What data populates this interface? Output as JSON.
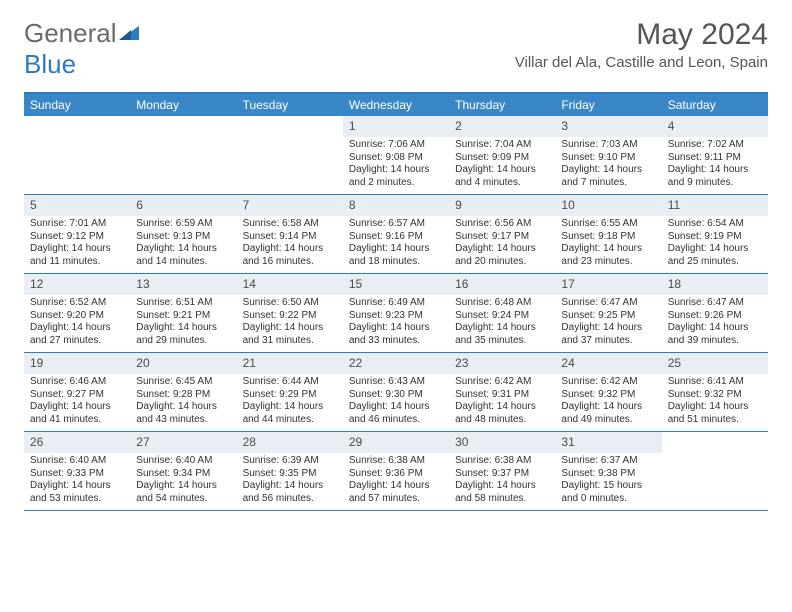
{
  "brand": {
    "text1": "General",
    "text2": "Blue"
  },
  "title": "May 2024",
  "location": "Villar del Ala, Castille and Leon, Spain",
  "colors": {
    "header_blue": "#3a87c7",
    "border_blue": "#2f7bbf",
    "daynum_bg": "#e8eef3",
    "text_gray": "#555555"
  },
  "day_headers": [
    "Sunday",
    "Monday",
    "Tuesday",
    "Wednesday",
    "Thursday",
    "Friday",
    "Saturday"
  ],
  "weeks": [
    [
      null,
      null,
      null,
      {
        "n": "1",
        "sr": "7:06 AM",
        "ss": "9:08 PM",
        "dl": "14 hours and 2 minutes."
      },
      {
        "n": "2",
        "sr": "7:04 AM",
        "ss": "9:09 PM",
        "dl": "14 hours and 4 minutes."
      },
      {
        "n": "3",
        "sr": "7:03 AM",
        "ss": "9:10 PM",
        "dl": "14 hours and 7 minutes."
      },
      {
        "n": "4",
        "sr": "7:02 AM",
        "ss": "9:11 PM",
        "dl": "14 hours and 9 minutes."
      }
    ],
    [
      {
        "n": "5",
        "sr": "7:01 AM",
        "ss": "9:12 PM",
        "dl": "14 hours and 11 minutes."
      },
      {
        "n": "6",
        "sr": "6:59 AM",
        "ss": "9:13 PM",
        "dl": "14 hours and 14 minutes."
      },
      {
        "n": "7",
        "sr": "6:58 AM",
        "ss": "9:14 PM",
        "dl": "14 hours and 16 minutes."
      },
      {
        "n": "8",
        "sr": "6:57 AM",
        "ss": "9:16 PM",
        "dl": "14 hours and 18 minutes."
      },
      {
        "n": "9",
        "sr": "6:56 AM",
        "ss": "9:17 PM",
        "dl": "14 hours and 20 minutes."
      },
      {
        "n": "10",
        "sr": "6:55 AM",
        "ss": "9:18 PM",
        "dl": "14 hours and 23 minutes."
      },
      {
        "n": "11",
        "sr": "6:54 AM",
        "ss": "9:19 PM",
        "dl": "14 hours and 25 minutes."
      }
    ],
    [
      {
        "n": "12",
        "sr": "6:52 AM",
        "ss": "9:20 PM",
        "dl": "14 hours and 27 minutes."
      },
      {
        "n": "13",
        "sr": "6:51 AM",
        "ss": "9:21 PM",
        "dl": "14 hours and 29 minutes."
      },
      {
        "n": "14",
        "sr": "6:50 AM",
        "ss": "9:22 PM",
        "dl": "14 hours and 31 minutes."
      },
      {
        "n": "15",
        "sr": "6:49 AM",
        "ss": "9:23 PM",
        "dl": "14 hours and 33 minutes."
      },
      {
        "n": "16",
        "sr": "6:48 AM",
        "ss": "9:24 PM",
        "dl": "14 hours and 35 minutes."
      },
      {
        "n": "17",
        "sr": "6:47 AM",
        "ss": "9:25 PM",
        "dl": "14 hours and 37 minutes."
      },
      {
        "n": "18",
        "sr": "6:47 AM",
        "ss": "9:26 PM",
        "dl": "14 hours and 39 minutes."
      }
    ],
    [
      {
        "n": "19",
        "sr": "6:46 AM",
        "ss": "9:27 PM",
        "dl": "14 hours and 41 minutes."
      },
      {
        "n": "20",
        "sr": "6:45 AM",
        "ss": "9:28 PM",
        "dl": "14 hours and 43 minutes."
      },
      {
        "n": "21",
        "sr": "6:44 AM",
        "ss": "9:29 PM",
        "dl": "14 hours and 44 minutes."
      },
      {
        "n": "22",
        "sr": "6:43 AM",
        "ss": "9:30 PM",
        "dl": "14 hours and 46 minutes."
      },
      {
        "n": "23",
        "sr": "6:42 AM",
        "ss": "9:31 PM",
        "dl": "14 hours and 48 minutes."
      },
      {
        "n": "24",
        "sr": "6:42 AM",
        "ss": "9:32 PM",
        "dl": "14 hours and 49 minutes."
      },
      {
        "n": "25",
        "sr": "6:41 AM",
        "ss": "9:32 PM",
        "dl": "14 hours and 51 minutes."
      }
    ],
    [
      {
        "n": "26",
        "sr": "6:40 AM",
        "ss": "9:33 PM",
        "dl": "14 hours and 53 minutes."
      },
      {
        "n": "27",
        "sr": "6:40 AM",
        "ss": "9:34 PM",
        "dl": "14 hours and 54 minutes."
      },
      {
        "n": "28",
        "sr": "6:39 AM",
        "ss": "9:35 PM",
        "dl": "14 hours and 56 minutes."
      },
      {
        "n": "29",
        "sr": "6:38 AM",
        "ss": "9:36 PM",
        "dl": "14 hours and 57 minutes."
      },
      {
        "n": "30",
        "sr": "6:38 AM",
        "ss": "9:37 PM",
        "dl": "14 hours and 58 minutes."
      },
      {
        "n": "31",
        "sr": "6:37 AM",
        "ss": "9:38 PM",
        "dl": "15 hours and 0 minutes."
      },
      null
    ]
  ],
  "labels": {
    "sunrise": "Sunrise:",
    "sunset": "Sunset:",
    "daylight": "Daylight:"
  }
}
